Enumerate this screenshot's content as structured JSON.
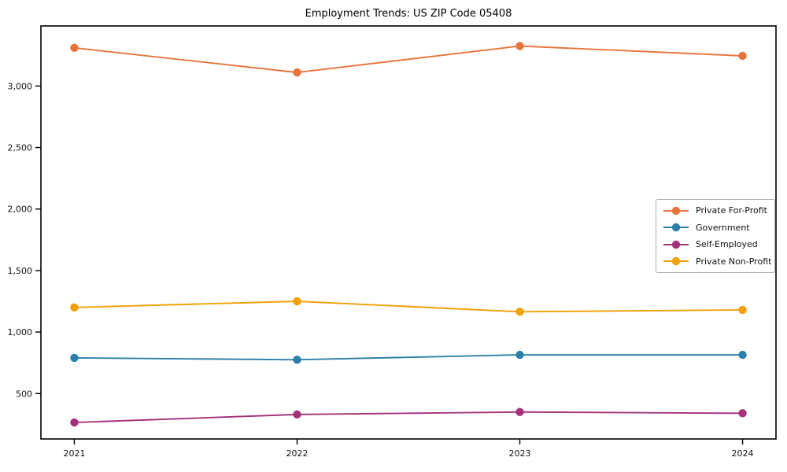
{
  "chart_data": {
    "type": "line",
    "title": "Employment Trends: US ZIP Code 05408",
    "xlabel": "",
    "ylabel": "",
    "x": [
      2021,
      2022,
      2023,
      2024
    ],
    "x_tick_labels": [
      "2021",
      "2022",
      "2023",
      "2024"
    ],
    "y_ticks": [
      500,
      1000,
      1500,
      2000,
      2500,
      3000
    ],
    "y_tick_labels": [
      "500",
      "1,000",
      "1,500",
      "2,000",
      "2,500",
      "3,000"
    ],
    "ylim": [
      131,
      3488
    ],
    "grid": false,
    "legend_position": "center-right-inside",
    "axis_color": "#000000",
    "series": [
      {
        "name": "Private For-Profit",
        "color": "#e8743b",
        "values": [
          3310,
          3110,
          3325,
          3245
        ]
      },
      {
        "name": "Government",
        "color": "#2c80a8",
        "values": [
          790,
          775,
          815,
          815
        ]
      },
      {
        "name": "Self-Employed",
        "color": "#a3327b",
        "values": [
          265,
          330,
          350,
          340
        ]
      },
      {
        "name": "Private Non-Profit",
        "color": "#f1a005",
        "values": [
          1200,
          1250,
          1165,
          1180
        ]
      }
    ]
  }
}
